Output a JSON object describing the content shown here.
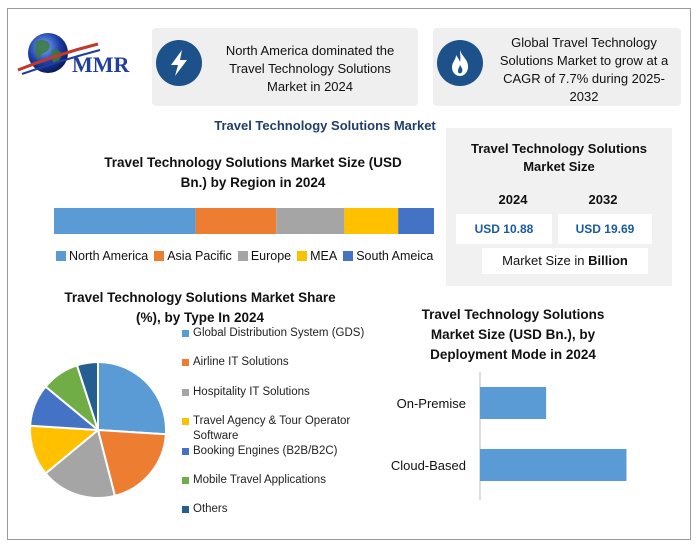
{
  "logo": {
    "text": "MMR"
  },
  "cards": [
    {
      "text": "North America dominated the Travel Technology Solutions Market in 2024",
      "icon": "lightning-icon"
    },
    {
      "text": "Global Travel Technology Solutions Market to grow at a CAGR of 7.7% during 2025-2032",
      "icon": "flame-icon"
    }
  ],
  "main_title": "Travel Technology Solutions Market",
  "size_panel": {
    "title": "Travel Technology Solutions Market Size",
    "year1": "2024",
    "year2": "2032",
    "value1": "USD 10.88",
    "value2": "USD 19.69",
    "unit_prefix": "Market Size in ",
    "unit_bold": "Billion"
  },
  "colors": {
    "accent_dark_blue": "#1c5189",
    "title_blue": "#1f3e6a",
    "value_blue": "#1a5aa0"
  },
  "chart_data": [
    {
      "type": "bar",
      "orientation": "horizontal-stacked",
      "title": "Travel Technology Solutions Market Size (USD Bn.) by Region in 2024",
      "series": [
        {
          "name": "North America",
          "value": 39.5,
          "color": "#5b9bd5"
        },
        {
          "name": "Asia Pacific",
          "value": 22.5,
          "color": "#ed7d31"
        },
        {
          "name": "Europe",
          "value": 19,
          "color": "#a5a5a5"
        },
        {
          "name": "MEA",
          "value": 15,
          "color": "#ffc000"
        },
        {
          "name": "South Ameica",
          "value": 10,
          "color": "#4472c4"
        }
      ],
      "legend": "bottom"
    },
    {
      "type": "pie",
      "title": "Travel Technology Solutions Market Share (%), by Type In 2024",
      "slices": [
        {
          "name": "Global Distribution System (GDS)",
          "value": 26,
          "color": "#5b9bd5"
        },
        {
          "name": "Airline IT Solutions",
          "value": 20,
          "color": "#ed7d31"
        },
        {
          "name": "Hospitality IT Solutions",
          "value": 18,
          "color": "#a5a5a5"
        },
        {
          "name": "Travel Agency & Tour Operator Software",
          "value": 12,
          "color": "#ffc000"
        },
        {
          "name": "Booking Engines (B2B/B2C)",
          "value": 10,
          "color": "#4472c4"
        },
        {
          "name": "Mobile Travel Applications",
          "value": 9,
          "color": "#70ad47"
        },
        {
          "name": "Others",
          "value": 5,
          "color": "#255e91"
        }
      ],
      "legend": "right"
    },
    {
      "type": "bar",
      "orientation": "horizontal",
      "title": "Travel Technology Solutions Market Size (USD Bn.), by Deployment Mode in 2024",
      "categories": [
        "On-Premise",
        "Cloud-Based"
      ],
      "values": [
        4.2,
        9.3
      ],
      "xlim": [
        0,
        12
      ],
      "color": "#5b9bd5",
      "grid": false
    }
  ]
}
